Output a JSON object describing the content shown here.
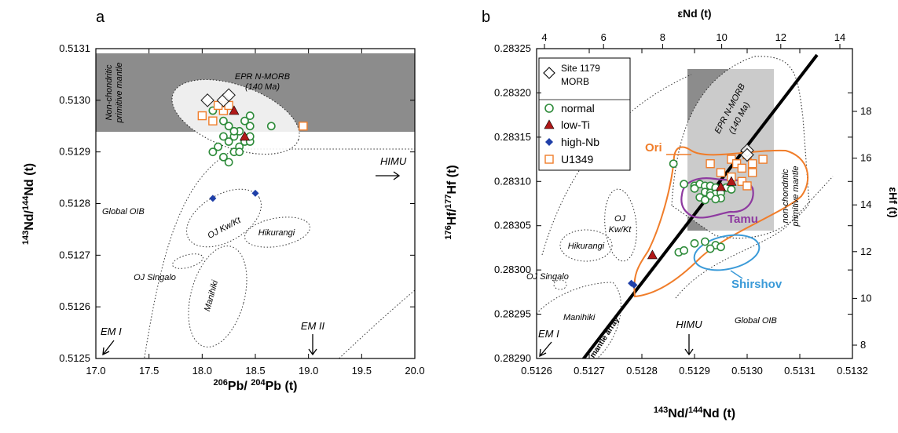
{
  "panels": [
    {
      "label": "a",
      "xlabel": "206Pb/ 204Pb (t)",
      "ylabel": "143Nd/144Nd (t)",
      "xlim": [
        17.0,
        20.0
      ],
      "ylim": [
        0.5125,
        0.5131
      ],
      "xticks": [
        "17.0",
        "17.5",
        "18.0",
        "18.5",
        "19.0",
        "19.5",
        "20.0"
      ],
      "yticks": [
        "0.5125",
        "0.5126",
        "0.5127",
        "0.5128",
        "0.5129",
        "0.5130",
        "0.5131"
      ],
      "annotations": {
        "epr_title": "EPR N-MORB",
        "epr_age": "(140 Ma)",
        "nonchon1": "Non-chondritic",
        "nonchon2": "primitive mantle",
        "himu": "HIMU",
        "global_oib": "Global OIB",
        "oj_kw": "OJ Kw/Kt",
        "hikurangi": "Hikurangi",
        "oj_singalo": "OJ Singalo",
        "manihiki": "Manihiki",
        "em1": "EM I",
        "em2": "EM II"
      }
    },
    {
      "label": "b",
      "xlabel": "143Nd/144Nd (t)",
      "ylabel": "176Hf/177Hf (t)",
      "top_xlabel": "εNd (t)",
      "right_ylabel": "εHf (t)",
      "xlim": [
        0.5126,
        0.5132
      ],
      "ylim": [
        0.2829,
        0.28325
      ],
      "xticks": [
        "0.5126",
        "0.5127",
        "0.5128",
        "0.5129",
        "0.5130",
        "0.5131",
        "0.5132"
      ],
      "yticks": [
        "0.28290",
        "0.28295",
        "0.28300",
        "0.28305",
        "0.28310",
        "0.28315",
        "0.28320",
        "0.28325"
      ],
      "top_ticks": [
        "4",
        "6",
        "8",
        "10",
        "12",
        "14"
      ],
      "right_ticks": [
        "8",
        "10",
        "12",
        "14",
        "16",
        "18"
      ],
      "annotations": {
        "epr_title": "EPR N-MORB",
        "epr_age": "(140 Ma)",
        "nonchon1": "non-chondritic",
        "nonchon2": "primitive mantle",
        "ori": "Ori",
        "tamu": "Tamu",
        "shirshov": "Shirshov",
        "oj_kw1": "OJ",
        "oj_kw2": "Kw/Kt",
        "hikurangi": "Hikurangi",
        "oj_singalo": "OJ Singalo",
        "manihiki": "Manihiki",
        "mantle_array": "mantle array",
        "himu": "HIMU",
        "global_oib": "Global OIB",
        "em1": "EM I"
      },
      "legend": {
        "site_line1": "Site 1179",
        "site_line2": "MORB",
        "normal": "normal",
        "lowti": "low-Ti",
        "highnb": "high-Nb",
        "u1349": "U1349"
      }
    }
  ],
  "colors": {
    "gray_field": "#8c8c8c",
    "normal": "#2e8b3a",
    "lowti": "#b01818",
    "highnb": "#1f3fa8",
    "u1349": "#f07d2a",
    "ori": "#f07d2a",
    "tamu": "#8e3aa0",
    "shirshov": "#3a9ad8"
  },
  "chart_data": [
    {
      "type": "scatter",
      "panel": "a",
      "x_label": "206Pb/ 204Pb (t)",
      "y_label": "143Nd/144Nd (t)",
      "xlim": [
        17.0,
        20.0
      ],
      "ylim": [
        0.5125,
        0.5131
      ],
      "series": [
        {
          "name": "Site 1179 MORB",
          "marker": "diamond",
          "points": [
            [
              18.05,
              0.513
            ],
            [
              18.2,
              0.513
            ],
            [
              18.25,
              0.51301
            ]
          ]
        },
        {
          "name": "normal",
          "marker": "circle",
          "points": [
            [
              18.1,
              0.51298
            ],
            [
              18.2,
              0.51296
            ],
            [
              18.25,
              0.51295
            ],
            [
              18.3,
              0.51293
            ],
            [
              18.35,
              0.51294
            ],
            [
              18.4,
              0.51296
            ],
            [
              18.45,
              0.51297
            ],
            [
              18.45,
              0.51295
            ],
            [
              18.3,
              0.51294
            ],
            [
              18.2,
              0.51293
            ],
            [
              18.25,
              0.51292
            ],
            [
              18.35,
              0.51291
            ],
            [
              18.4,
              0.51292
            ],
            [
              18.45,
              0.51292
            ],
            [
              18.15,
              0.51291
            ],
            [
              18.3,
              0.5129
            ],
            [
              18.2,
              0.51289
            ],
            [
              18.25,
              0.51288
            ],
            [
              18.1,
              0.5129
            ],
            [
              18.35,
              0.5129
            ],
            [
              18.65,
              0.51295
            ],
            [
              18.45,
              0.51293
            ]
          ]
        },
        {
          "name": "low-Ti",
          "marker": "triangle",
          "points": [
            [
              18.3,
              0.51298
            ],
            [
              18.4,
              0.51293
            ]
          ]
        },
        {
          "name": "high-Nb",
          "marker": "diamond-filled",
          "points": [
            [
              18.1,
              0.51281
            ],
            [
              18.5,
              0.51282
            ]
          ]
        },
        {
          "name": "U1349",
          "marker": "square",
          "points": [
            [
              18.0,
              0.51297
            ],
            [
              18.1,
              0.51296
            ],
            [
              18.2,
              0.51298
            ],
            [
              18.25,
              0.51299
            ],
            [
              18.15,
              0.51299
            ],
            [
              18.95,
              0.51295
            ]
          ]
        }
      ]
    },
    {
      "type": "scatter",
      "panel": "b",
      "x_label": "143Nd/144Nd (t)",
      "y_label": "176Hf/177Hf (t)",
      "xlim": [
        0.5126,
        0.5132
      ],
      "ylim": [
        0.2829,
        0.28325
      ],
      "series": [
        {
          "name": "Site 1179 MORB",
          "marker": "diamond",
          "points": [
            [
              0.513,
              0.283135
            ],
            [
              0.513,
              0.28313
            ]
          ]
        },
        {
          "name": "normal",
          "marker": "circle",
          "points": [
            [
              0.51286,
              0.28312
            ],
            [
              0.51288,
              0.283097
            ],
            [
              0.5129,
              0.283095
            ],
            [
              0.51291,
              0.283097
            ],
            [
              0.51292,
              0.283095
            ],
            [
              0.51293,
              0.283095
            ],
            [
              0.51294,
              0.283093
            ],
            [
              0.51295,
              0.28309
            ],
            [
              0.51296,
              0.283093
            ],
            [
              0.51297,
              0.283091
            ],
            [
              0.5129,
              0.283092
            ],
            [
              0.51292,
              0.283088
            ],
            [
              0.51293,
              0.283087
            ],
            [
              0.51294,
              0.283086
            ],
            [
              0.51295,
              0.283087
            ],
            [
              0.51291,
              0.283082
            ],
            [
              0.51293,
              0.283084
            ],
            [
              0.51295,
              0.283081
            ],
            [
              0.51292,
              0.283079
            ],
            [
              0.51294,
              0.28308
            ],
            [
              0.51287,
              0.28302
            ],
            [
              0.51288,
              0.283022
            ],
            [
              0.5129,
              0.28303
            ],
            [
              0.51292,
              0.283032
            ],
            [
              0.51294,
              0.283028
            ],
            [
              0.51293,
              0.283024
            ],
            [
              0.51295,
              0.283026
            ]
          ]
        },
        {
          "name": "low-Ti",
          "marker": "triangle",
          "points": [
            [
              0.51282,
              0.283017
            ],
            [
              0.51295,
              0.283094
            ],
            [
              0.51297,
              0.2831
            ]
          ]
        },
        {
          "name": "high-Nb",
          "marker": "diamond-filled",
          "points": [
            [
              0.51278,
              0.282985
            ],
            [
              0.512785,
              0.282983
            ]
          ]
        },
        {
          "name": "U1349",
          "marker": "square",
          "points": [
            [
              0.51293,
              0.28312
            ],
            [
              0.51295,
              0.28311
            ],
            [
              0.51297,
              0.283125
            ],
            [
              0.51298,
              0.28312
            ],
            [
              0.51299,
              0.283115
            ],
            [
              0.513,
              0.28313
            ],
            [
              0.51301,
              0.28312
            ],
            [
              0.51303,
              0.283125
            ],
            [
              0.51297,
              0.283105
            ],
            [
              0.51299,
              0.2831
            ],
            [
              0.51301,
              0.28311
            ],
            [
              0.513,
              0.283095
            ]
          ]
        }
      ]
    }
  ]
}
